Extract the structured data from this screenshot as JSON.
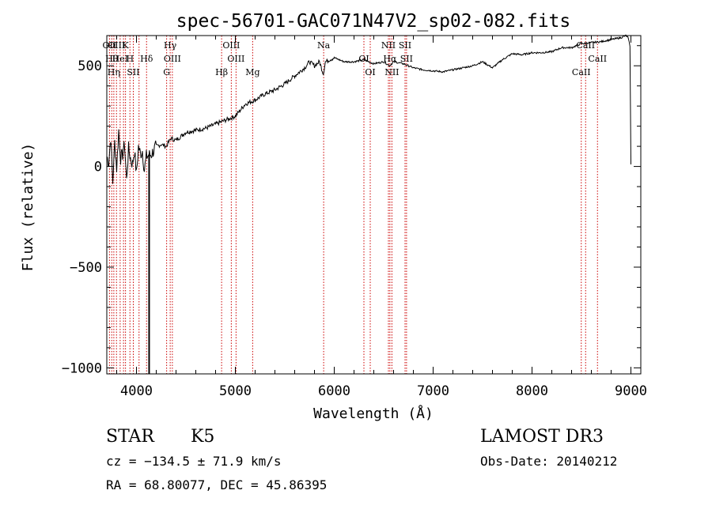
{
  "chart_data": {
    "type": "line",
    "title": "spec-56701-GAC071N47V2_sp02-082.fits",
    "xlabel": "Wavelength (Å)",
    "ylabel": "Flux (relative)",
    "xlim": [
      3700,
      9100
    ],
    "ylim": [
      -1030,
      650
    ],
    "xticks": [
      4000,
      5000,
      6000,
      7000,
      8000,
      9000
    ],
    "yticks": [
      -1000,
      -500,
      0,
      500
    ],
    "line_color": "#000000",
    "marker_color": "#cc0000",
    "series": [
      {
        "name": "spectrum",
        "x": [
          3700,
          3720,
          3740,
          3760,
          3780,
          3800,
          3820,
          3840,
          3860,
          3880,
          3900,
          3920,
          3940,
          3960,
          3980,
          4000,
          4020,
          4040,
          4060,
          4080,
          4100,
          4150,
          4200,
          4250,
          4300,
          4350,
          4400,
          4500,
          4600,
          4700,
          4800,
          4850,
          4900,
          5000,
          5100,
          5200,
          5300,
          5400,
          5500,
          5600,
          5700,
          5750,
          5800,
          5850,
          5890,
          5910,
          5950,
          6000,
          6100,
          6200,
          6300,
          6400,
          6500,
          6560,
          6600,
          6700,
          6800,
          6900,
          7000,
          7100,
          7200,
          7300,
          7400,
          7500,
          7600,
          7700,
          7800,
          7900,
          8000,
          8100,
          8200,
          8300,
          8400,
          8500,
          8600,
          8700,
          8800,
          8900,
          8950,
          8970,
          8990,
          9000
        ],
        "y": [
          50,
          20,
          150,
          -80,
          120,
          -10,
          180,
          40,
          60,
          110,
          -70,
          90,
          40,
          10,
          80,
          -40,
          100,
          60,
          80,
          -20,
          50,
          60,
          100,
          110,
          100,
          140,
          130,
          170,
          180,
          190,
          210,
          220,
          230,
          250,
          310,
          330,
          360,
          380,
          410,
          450,
          490,
          520,
          500,
          520,
          460,
          520,
          530,
          540,
          520,
          520,
          530,
          510,
          520,
          500,
          520,
          510,
          490,
          480,
          475,
          470,
          480,
          490,
          500,
          520,
          490,
          530,
          560,
          555,
          565,
          565,
          570,
          590,
          590,
          610,
          615,
          620,
          630,
          640,
          650,
          640,
          600,
          10
        ]
      }
    ],
    "lines": [
      {
        "wl": 3727,
        "label": "OII"
      },
      {
        "wl": 3750,
        "label": "Hθ"
      },
      {
        "wl": 3771,
        "label": "Hη"
      },
      {
        "wl": 3798,
        "label": "OIII"
      },
      {
        "wl": 3835,
        "label": "HeI"
      },
      {
        "wl": 3869,
        "label": ""
      },
      {
        "wl": 3889,
        "label": "K"
      },
      {
        "wl": 3934,
        "label": "H"
      },
      {
        "wl": 3968,
        "label": "SII"
      },
      {
        "wl": 4026,
        "label": ""
      },
      {
        "wl": 4102,
        "label": "Hδ"
      },
      {
        "wl": 4305,
        "label": "G"
      },
      {
        "wl": 4341,
        "label": "Hγ"
      },
      {
        "wl": 4363,
        "label": "OIII"
      },
      {
        "wl": 4861,
        "label": "Hβ"
      },
      {
        "wl": 4959,
        "label": "OIII"
      },
      {
        "wl": 5007,
        "label": "OIII"
      },
      {
        "wl": 5175,
        "label": "Mg"
      },
      {
        "wl": 5893,
        "label": "Na"
      },
      {
        "wl": 6300,
        "label": "OI"
      },
      {
        "wl": 6364,
        "label": "OI"
      },
      {
        "wl": 6548,
        "label": "NII"
      },
      {
        "wl": 6563,
        "label": "Hα"
      },
      {
        "wl": 6583,
        "label": "NII"
      },
      {
        "wl": 6716,
        "label": "SII"
      },
      {
        "wl": 6731,
        "label": "SII"
      },
      {
        "wl": 8498,
        "label": "CaII"
      },
      {
        "wl": 8542,
        "label": "CaII"
      },
      {
        "wl": 8662,
        "label": "CaII"
      }
    ]
  },
  "info": {
    "object_class": "STAR",
    "subclass": "K5",
    "survey": "LAMOST DR3",
    "cz": "cz = −134.5 ± 71.9 km/s",
    "obs_date": "Obs-Date: 20140212",
    "coords": "RA =  68.80077, DEC =  45.86395"
  }
}
